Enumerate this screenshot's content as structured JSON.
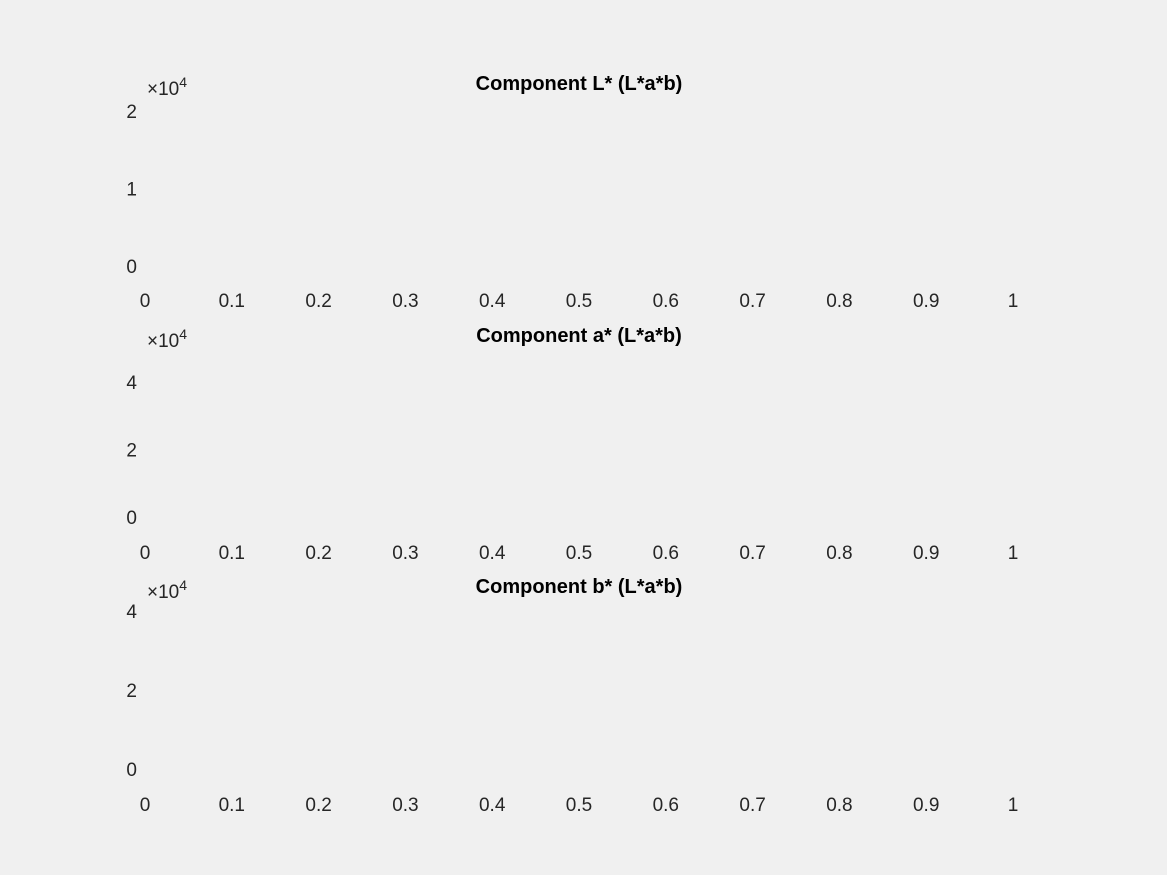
{
  "chart_data": [
    {
      "type": "bar",
      "title": "Component L* (L*a*b)",
      "xlabel": "",
      "ylabel": "",
      "x_ticks": [
        "0",
        "0.1",
        "0.2",
        "0.3",
        "0.4",
        "0.5",
        "0.6",
        "0.7",
        "0.8",
        "0.9",
        "1"
      ],
      "y_ticks": [
        "0",
        "1",
        "2"
      ],
      "xlim": [
        0,
        1
      ],
      "ylim": [
        0,
        2
      ],
      "y_exponent_base": "×10",
      "y_exponent_power": "4",
      "grid": false,
      "values": []
    },
    {
      "type": "bar",
      "title": "Component a* (L*a*b)",
      "xlabel": "",
      "ylabel": "",
      "x_ticks": [
        "0",
        "0.1",
        "0.2",
        "0.3",
        "0.4",
        "0.5",
        "0.6",
        "0.7",
        "0.8",
        "0.9",
        "1"
      ],
      "y_ticks": [
        "0",
        "2",
        "4"
      ],
      "xlim": [
        0,
        1
      ],
      "ylim": [
        0,
        4
      ],
      "y_exponent_base": "×10",
      "y_exponent_power": "4",
      "grid": false,
      "values": []
    },
    {
      "type": "bar",
      "title": "Component b* (L*a*b)",
      "xlabel": "",
      "ylabel": "",
      "x_ticks": [
        "0",
        "0.1",
        "0.2",
        "0.3",
        "0.4",
        "0.5",
        "0.6",
        "0.7",
        "0.8",
        "0.9",
        "1"
      ],
      "y_ticks": [
        "0",
        "2",
        "4"
      ],
      "xlim": [
        0,
        1
      ],
      "ylim": [
        0,
        4
      ],
      "y_exponent_base": "×10",
      "y_exponent_power": "4",
      "grid": false,
      "values": []
    }
  ]
}
